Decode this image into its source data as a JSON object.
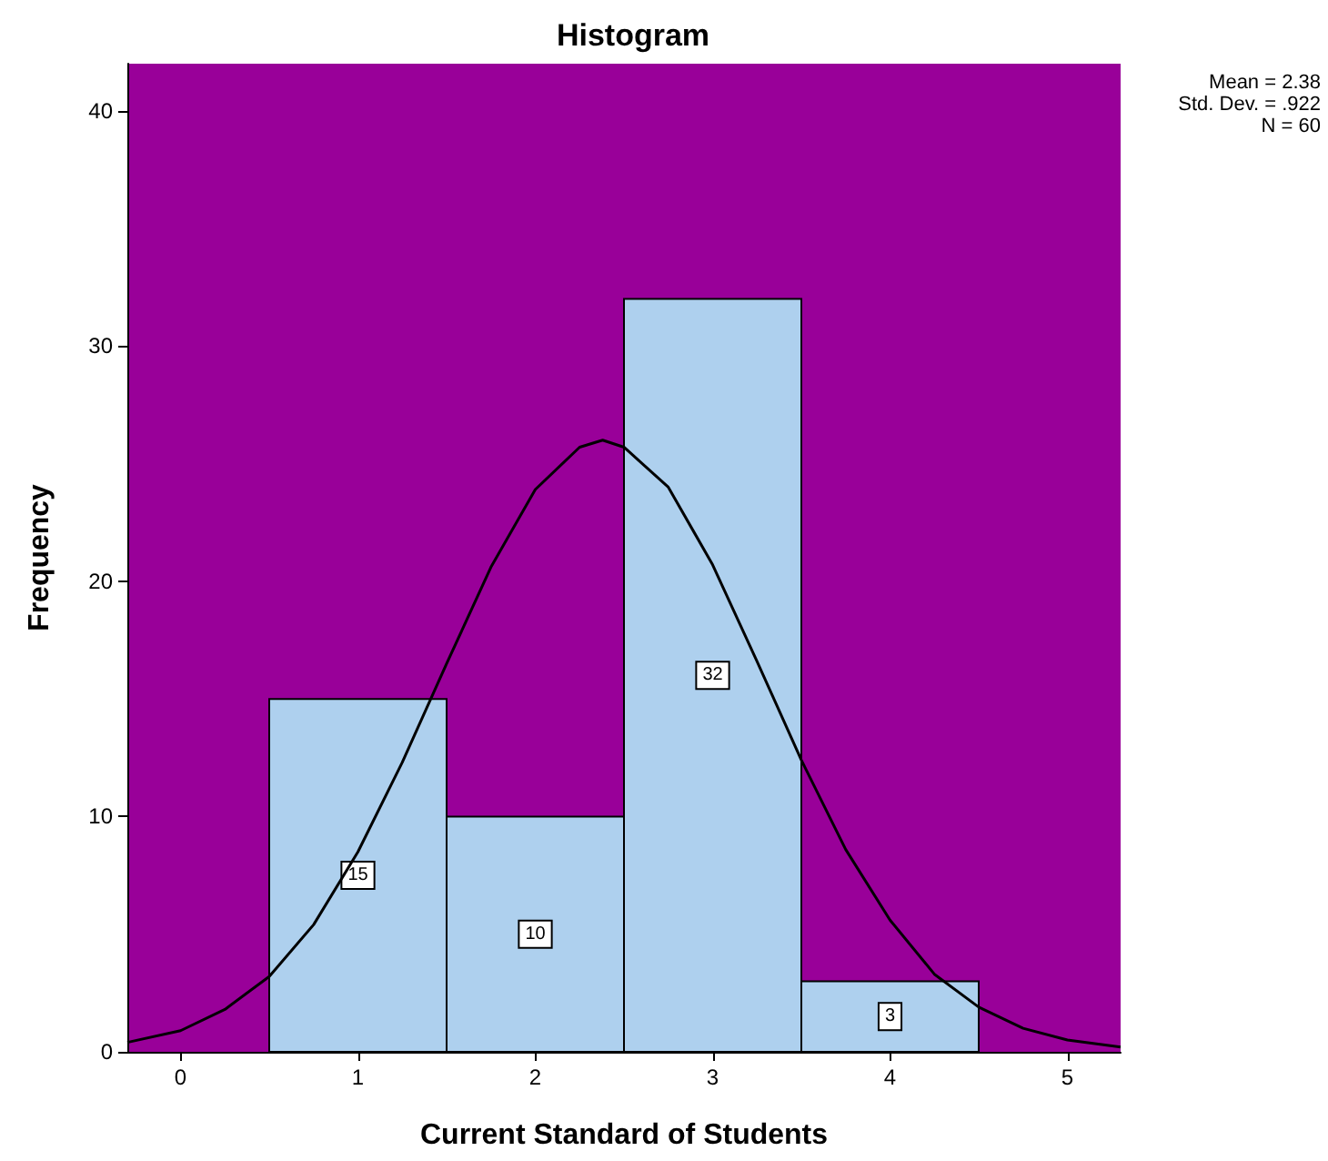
{
  "chart_data": {
    "type": "histogram",
    "title": "Histogram",
    "xlabel": "Current Standard of Students",
    "ylabel": "Frequency",
    "bins": [
      0.5,
      1.5,
      2.5,
      3.5,
      4.5
    ],
    "values": [
      15,
      10,
      32,
      3
    ],
    "color": "#aed0ee",
    "value_labels": [
      "15",
      "10",
      "32",
      "3"
    ],
    "series": [
      {
        "type": "line",
        "color": "#000000",
        "marker": "none",
        "x": [
          -0.3,
          0,
          0.25,
          0.5,
          0.75,
          1,
          1.25,
          1.5,
          1.75,
          2,
          2.25,
          2.38,
          2.5,
          2.75,
          3,
          3.25,
          3.5,
          3.75,
          4,
          4.25,
          4.5,
          4.75,
          5,
          5.3
        ],
        "values": [
          0.4,
          0.9,
          1.8,
          3.2,
          5.4,
          8.5,
          12.3,
          16.5,
          20.6,
          23.9,
          25.7,
          26,
          25.7,
          24,
          20.7,
          16.6,
          12.4,
          8.6,
          5.6,
          3.3,
          1.9,
          1,
          0.5,
          0.2
        ]
      }
    ],
    "xlim": [
      -0.3,
      5.3
    ],
    "xticks": [
      0,
      1,
      2,
      3,
      4,
      5
    ],
    "ylim": [
      0,
      42
    ],
    "yticks": [
      0,
      10,
      20,
      30,
      40
    ],
    "grid": false,
    "annotations": [
      "Mean = 2.38",
      "Std. Dev. = .922",
      "N = 60"
    ]
  }
}
